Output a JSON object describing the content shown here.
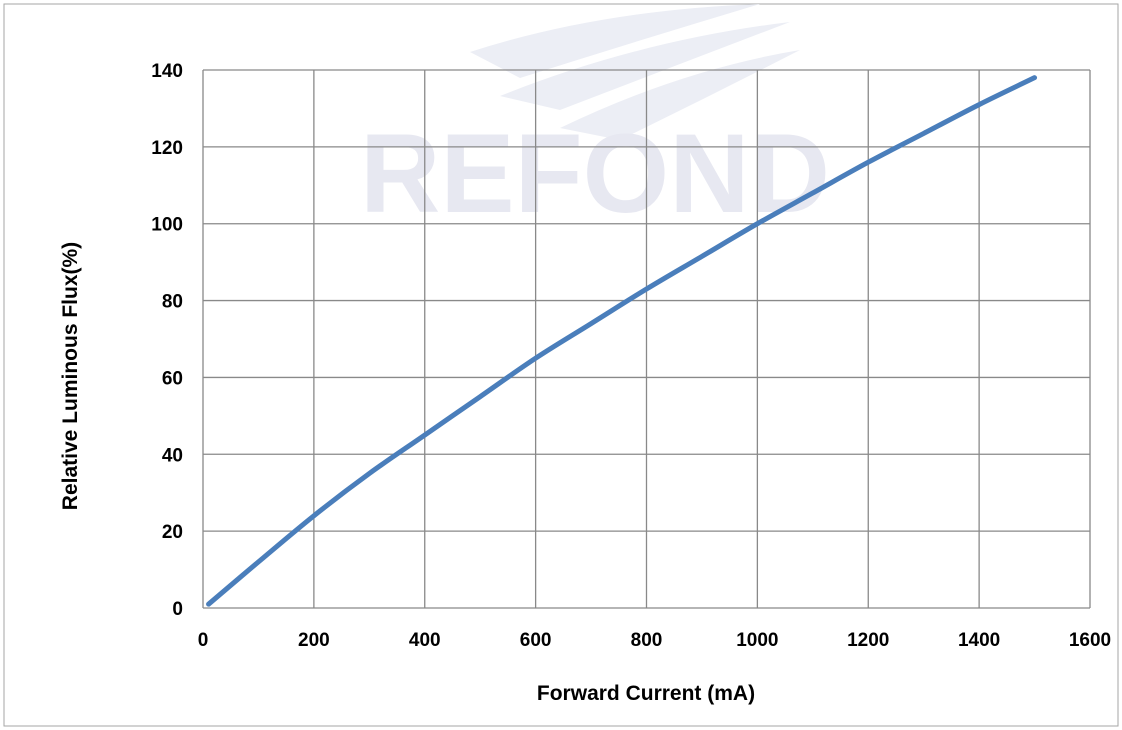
{
  "watermark": {
    "text": "REFOND"
  },
  "chart_data": {
    "type": "line",
    "xlabel": "Forward Current (mA)",
    "ylabel": "Relative Luminous Flux(%)",
    "xlim": [
      0,
      1600
    ],
    "ylim": [
      0,
      140
    ],
    "xticks": [
      0,
      200,
      400,
      600,
      800,
      1000,
      1200,
      1400,
      1600
    ],
    "yticks": [
      0,
      20,
      40,
      60,
      80,
      100,
      120,
      140
    ],
    "grid": true,
    "legend": "none",
    "series": [
      {
        "color": "#4a7ebb",
        "x": [
          10,
          100,
          200,
          300,
          400,
          500,
          600,
          700,
          800,
          900,
          1000,
          1100,
          1200,
          1300,
          1400,
          1500
        ],
        "y": [
          1,
          12,
          24,
          35,
          45,
          55,
          65,
          74,
          83,
          91.5,
          100,
          108,
          116,
          123.5,
          131,
          138
        ]
      }
    ]
  }
}
